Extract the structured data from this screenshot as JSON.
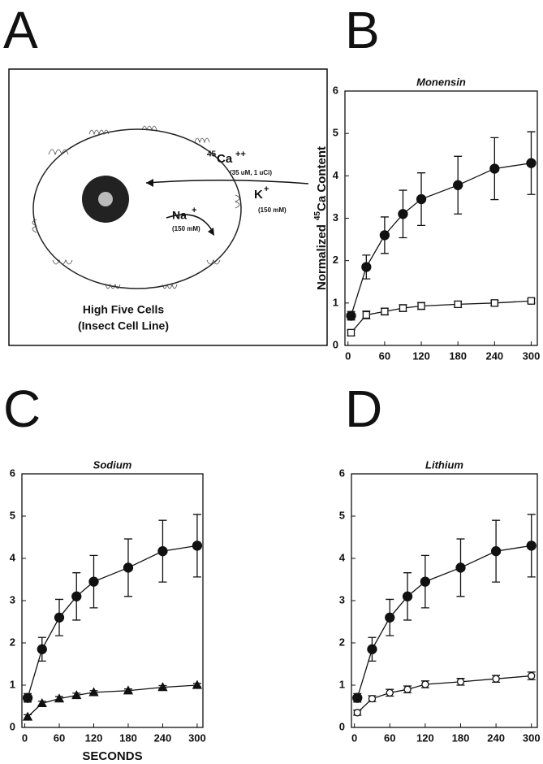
{
  "panels": [
    "A",
    "B",
    "C",
    "D"
  ],
  "diagram": {
    "ca": {
      "isotope": "45",
      "ion": "Ca",
      "charge": "++"
    },
    "ca_note": "(35 uM, 1 uCi)",
    "k": {
      "ion": "K",
      "charge": "+"
    },
    "k_note": "(150 mM)",
    "na": {
      "ion": "Na",
      "charge": "+"
    },
    "na_note": "(150 mM)",
    "caption": [
      "High Five Cells",
      "(Insect Cell Line)"
    ]
  },
  "chart_data": [
    {
      "type": "line",
      "title": "Monensin",
      "ylabel": {
        "pre": "Normalized",
        "isotope": "45",
        "post": "Ca Content"
      },
      "x": [
        5,
        30,
        60,
        90,
        120,
        180,
        240,
        300
      ],
      "xlim": [
        -5,
        310
      ],
      "xticks": [
        0,
        60,
        120,
        180,
        240,
        300
      ],
      "ylim": [
        0,
        6
      ],
      "yticks": [
        0,
        1,
        2,
        3,
        4,
        5,
        6
      ],
      "series": [
        {
          "marker": "circle",
          "filled": true,
          "color": "#111",
          "values": [
            0.7,
            1.85,
            2.6,
            3.1,
            3.45,
            3.78,
            4.17,
            4.3
          ],
          "errors": [
            0.1,
            0.28,
            0.43,
            0.56,
            0.62,
            0.68,
            0.73,
            0.74
          ]
        },
        {
          "marker": "square",
          "filled": false,
          "color": "#111",
          "values": [
            0.3,
            0.72,
            0.8,
            0.88,
            0.93,
            0.97,
            1.0,
            1.05
          ],
          "errors": [
            0.07,
            0.09,
            0.08,
            0.08,
            0.08,
            0.07,
            0.06,
            0.05
          ]
        }
      ]
    },
    {
      "type": "line",
      "title": "Sodium",
      "xlabel": "SECONDS",
      "x": [
        5,
        30,
        60,
        90,
        120,
        180,
        240,
        300
      ],
      "xlim": [
        -5,
        310
      ],
      "xticks": [
        0,
        60,
        120,
        180,
        240,
        300
      ],
      "ylim": [
        0,
        6
      ],
      "yticks": [
        0,
        1,
        2,
        3,
        4,
        5,
        6
      ],
      "series": [
        {
          "marker": "circle",
          "filled": true,
          "color": "#111",
          "values": [
            0.7,
            1.85,
            2.6,
            3.1,
            3.45,
            3.78,
            4.17,
            4.3
          ],
          "errors": [
            0.1,
            0.28,
            0.43,
            0.56,
            0.62,
            0.68,
            0.73,
            0.74
          ]
        },
        {
          "marker": "triangle",
          "filled": true,
          "color": "#111",
          "values": [
            0.25,
            0.57,
            0.68,
            0.76,
            0.83,
            0.87,
            0.95,
            1.0
          ],
          "errors": [
            0.05,
            0.05,
            0.05,
            0.05,
            0.04,
            0.04,
            0.04,
            0.04
          ]
        }
      ]
    },
    {
      "type": "line",
      "title": "Lithium",
      "x": [
        5,
        30,
        60,
        90,
        120,
        180,
        240,
        300
      ],
      "xlim": [
        -5,
        310
      ],
      "xticks": [
        0,
        60,
        120,
        180,
        240,
        300
      ],
      "ylim": [
        0,
        6
      ],
      "yticks": [
        0,
        1,
        2,
        3,
        4,
        5,
        6
      ],
      "series": [
        {
          "marker": "circle",
          "filled": true,
          "color": "#111",
          "values": [
            0.7,
            1.85,
            2.6,
            3.1,
            3.45,
            3.78,
            4.17,
            4.3
          ],
          "errors": [
            0.1,
            0.28,
            0.43,
            0.56,
            0.62,
            0.68,
            0.73,
            0.74
          ]
        },
        {
          "marker": "circle",
          "filled": false,
          "color": "#111",
          "values": [
            0.35,
            0.68,
            0.82,
            0.9,
            1.02,
            1.08,
            1.15,
            1.22
          ],
          "errors": [
            0.06,
            0.07,
            0.08,
            0.08,
            0.08,
            0.08,
            0.08,
            0.09
          ]
        }
      ]
    }
  ]
}
